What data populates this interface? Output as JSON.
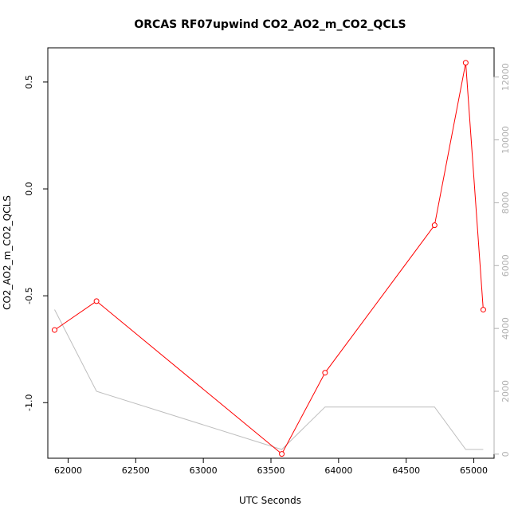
{
  "chart_data": {
    "type": "line",
    "title": "ORCAS RF07upwind CO2_AO2_m_CO2_QCLS",
    "xlabel": "UTC Seconds",
    "ylabel": "CO2_AO2_m_CO2_QCLS",
    "xlim": [
      61850,
      65150
    ],
    "ylim": [
      -1.26,
      0.66
    ],
    "y2lim": [
      -130,
      12930
    ],
    "x_ticks": [
      62000,
      62500,
      63000,
      63500,
      64000,
      64500,
      65000
    ],
    "y_ticks": [
      -1.0,
      -0.5,
      0.0,
      0.5
    ],
    "y2_ticks": [
      0,
      2000,
      4000,
      6000,
      8000,
      10000,
      12000
    ],
    "grid": false,
    "series": [
      {
        "axis": "left",
        "color": "#ff0000",
        "markers": "open-circle",
        "x": [
          61900,
          62210,
          63580,
          63900,
          64710,
          64940,
          65070
        ],
        "y": [
          -0.66,
          -0.525,
          -1.24,
          -0.86,
          -0.17,
          0.59,
          -0.565
        ]
      },
      {
        "axis": "right",
        "color": "#bebebe",
        "markers": "none",
        "x": [
          61900,
          62210,
          63580,
          63900,
          64710,
          64940,
          65070
        ],
        "y": [
          4600,
          2000,
          150,
          1500,
          1500,
          150,
          150
        ]
      }
    ]
  }
}
